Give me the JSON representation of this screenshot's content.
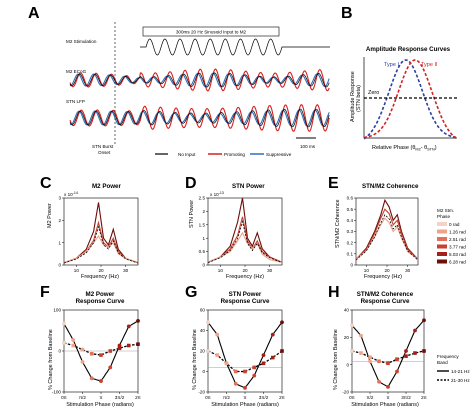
{
  "panels": {
    "A": {
      "letter": "A",
      "stim_box_label": "300ms 20 Hz Sinusoid Input to M2",
      "row_labels": [
        "M2 Stimulation",
        "M2 ECoG",
        "STN LFP"
      ],
      "burst_label": [
        "STN Burst",
        "Onset"
      ],
      "legend": [
        "No Input",
        "Promoting",
        "Suppressive"
      ],
      "scalebar": "100 ms"
    },
    "B": {
      "letter": "B",
      "title": "Amplitude Response Curves",
      "type1": "Type I",
      "type2": "Type II",
      "zero": "Zero",
      "ylabel_1": "Amplitude Response",
      "ylabel_2": "(STN beta)",
      "xlabel": "Relative Phase (θ",
      "xlabel_sub1": "M2",
      "xlabel_mid": "- θ",
      "xlabel_sub2": "STN",
      "xlabel_end": ")"
    },
    "C": {
      "letter": "C",
      "title": "M2 Power",
      "exp": "x 10",
      "exp_pow": "-14",
      "ylabel": "M2 Power",
      "xlabel": "Frequency (Hz)",
      "yticks": [
        "0",
        "1",
        "2",
        "3"
      ],
      "xticks": [
        "10",
        "20",
        "30"
      ]
    },
    "D": {
      "letter": "D",
      "title": "STN Power",
      "exp": "x 10",
      "exp_pow": "-13",
      "ylabel": "STN Power",
      "xlabel": "Frequency (Hz)",
      "yticks": [
        "0",
        "0.5",
        "1",
        "1.5",
        "2",
        "2.5"
      ],
      "xticks": [
        "10",
        "20",
        "30"
      ]
    },
    "E": {
      "letter": "E",
      "title": "STN/M2 Coherence",
      "ylabel": "STN/M2 Coherence",
      "xlabel": "Frequency (Hz)",
      "yticks": [
        "0",
        "0.1",
        "0.2",
        "0.3",
        "0.4",
        "0.5",
        "0.6"
      ],
      "xticks": [
        "10",
        "20",
        "30"
      ],
      "legend_title": [
        "M2 Stm.",
        "Phase"
      ],
      "legend_items": [
        "0 rad",
        "1.26 rad",
        "2.51 rad",
        "3.77 rad",
        "5.03 rad",
        "6.28 rad"
      ]
    },
    "F": {
      "letter": "F",
      "title_1": "M2 Power",
      "title_2": "Response Curve",
      "ylabel": "% Change from Baseline",
      "xlabel": "Stimulation Phase (radians)",
      "yticks": [
        "-100",
        "0",
        "100"
      ],
      "xticks": [
        "0π",
        "π/2",
        "π",
        "3π/2",
        "2π"
      ]
    },
    "G": {
      "letter": "G",
      "title_1": "STN Power",
      "title_2": "Response Curve",
      "ylabel": "% Change from Baseline",
      "xlabel": "Stimulation Phase (radians)",
      "yticks": [
        "-20",
        "0",
        "20",
        "40",
        "60"
      ],
      "xticks": [
        "0π",
        "π/2",
        "π",
        "3π/2",
        "2π"
      ]
    },
    "H": {
      "letter": "H",
      "title_1": "STN/M2 Coherence",
      "title_2": "Response Curve",
      "ylabel": "% Change from Baseline",
      "xlabel": "Stimulation Phase (radians)",
      "yticks": [
        "-20",
        "0",
        "20",
        "40"
      ],
      "xticks": [
        "0π",
        "π/2",
        "π",
        "3π/2",
        "2π"
      ],
      "legend_title": [
        "Frequency",
        "Band"
      ],
      "legend_items": [
        "14-21 Hz",
        "21-30 Hz"
      ]
    }
  },
  "colors": {
    "red": "#d62020",
    "blue": "#2f6fb8",
    "phase_colors": [
      "#f6d2c4",
      "#efa48a",
      "#e0725a",
      "#c8412f",
      "#a51f18",
      "#6e0d0a"
    ]
  },
  "chart_data": [
    {
      "type": "line",
      "panel": "C",
      "xlabel": "Frequency (Hz)",
      "ylabel": "M2 Power",
      "x": [
        5,
        10,
        14,
        17,
        19,
        21,
        23,
        25,
        27,
        30,
        35
      ],
      "ylim": [
        0,
        3
      ],
      "series": [
        {
          "values": [
            0.1,
            0.3,
            0.7,
            1.5,
            2.8,
            1.2,
            0.9,
            1.6,
            0.7,
            0.3,
            0.1
          ]
        },
        {
          "values": [
            0.1,
            0.3,
            0.6,
            1.1,
            1.9,
            1.0,
            0.8,
            1.2,
            0.6,
            0.3,
            0.1
          ]
        },
        {
          "values": [
            0.1,
            0.3,
            0.6,
            1.0,
            1.3,
            0.9,
            0.8,
            1.0,
            0.5,
            0.3,
            0.1
          ]
        }
      ]
    },
    {
      "type": "line",
      "panel": "D",
      "xlabel": "Frequency (Hz)",
      "ylabel": "STN Power",
      "x": [
        5,
        10,
        14,
        17,
        19,
        21,
        23,
        25,
        27,
        30,
        35
      ],
      "ylim": [
        0,
        2.5
      ],
      "series": [
        {
          "values": [
            0.1,
            0.3,
            0.7,
            1.6,
            2.5,
            1.0,
            0.7,
            1.2,
            0.6,
            0.3,
            0.1
          ]
        },
        {
          "values": [
            0.1,
            0.3,
            0.6,
            1.1,
            1.8,
            0.9,
            0.6,
            0.9,
            0.5,
            0.3,
            0.1
          ]
        },
        {
          "values": [
            0.1,
            0.3,
            0.5,
            0.9,
            1.2,
            0.8,
            0.6,
            0.8,
            0.4,
            0.2,
            0.1
          ]
        }
      ]
    },
    {
      "type": "line",
      "panel": "E",
      "xlabel": "Frequency (Hz)",
      "ylabel": "STN/M2 Coherence",
      "x": [
        5,
        10,
        14,
        17,
        19,
        21,
        23,
        25,
        27,
        30,
        35
      ],
      "ylim": [
        0,
        0.6
      ],
      "series": [
        {
          "values": [
            0.05,
            0.15,
            0.3,
            0.45,
            0.58,
            0.52,
            0.4,
            0.45,
            0.3,
            0.15,
            0.05
          ]
        },
        {
          "values": [
            0.05,
            0.14,
            0.28,
            0.42,
            0.5,
            0.46,
            0.36,
            0.4,
            0.28,
            0.14,
            0.05
          ]
        },
        {
          "values": [
            0.05,
            0.13,
            0.25,
            0.36,
            0.42,
            0.38,
            0.3,
            0.34,
            0.24,
            0.12,
            0.05
          ]
        }
      ]
    },
    {
      "type": "scatter",
      "panel": "F",
      "xlabel": "Stimulation Phase (radians)",
      "ylabel": "% Change from Baseline",
      "x": [
        0,
        0.785,
        1.571,
        2.356,
        3.142,
        3.927,
        4.712,
        5.498,
        6.283
      ],
      "ylim": [
        -150,
        150
      ],
      "series": [
        {
          "name": "14-21 Hz",
          "values": [
            100,
            40,
            -40,
            -100,
            -110,
            -60,
            20,
            90,
            110
          ]
        },
        {
          "name": "21-30 Hz",
          "values": [
            30,
            20,
            5,
            -10,
            -15,
            0,
            10,
            20,
            25
          ]
        }
      ]
    },
    {
      "type": "scatter",
      "panel": "G",
      "xlabel": "Stimulation Phase (radians)",
      "ylabel": "% Change from Baseline",
      "x": [
        0,
        0.785,
        1.571,
        2.356,
        3.142,
        3.927,
        4.712,
        5.498,
        6.283
      ],
      "ylim": [
        -30,
        70
      ],
      "series": [
        {
          "name": "14-21 Hz",
          "values": [
            55,
            40,
            5,
            -20,
            -25,
            -10,
            15,
            40,
            55
          ]
        },
        {
          "name": "21-30 Hz",
          "values": [
            20,
            15,
            5,
            -5,
            -5,
            0,
            5,
            12,
            20
          ]
        }
      ]
    },
    {
      "type": "scatter",
      "panel": "H",
      "xlabel": "Stimulation Phase (radians)",
      "ylabel": "% Change from Baseline",
      "x": [
        0,
        0.785,
        1.571,
        2.356,
        3.142,
        3.927,
        4.712,
        5.498,
        6.283
      ],
      "ylim": [
        -30,
        50
      ],
      "series": [
        {
          "name": "14-21 Hz",
          "values": [
            35,
            25,
            0,
            -20,
            -25,
            -10,
            10,
            30,
            40
          ]
        },
        {
          "name": "21-30 Hz",
          "values": [
            10,
            8,
            4,
            0,
            -2,
            2,
            5,
            8,
            10
          ]
        }
      ]
    }
  ]
}
